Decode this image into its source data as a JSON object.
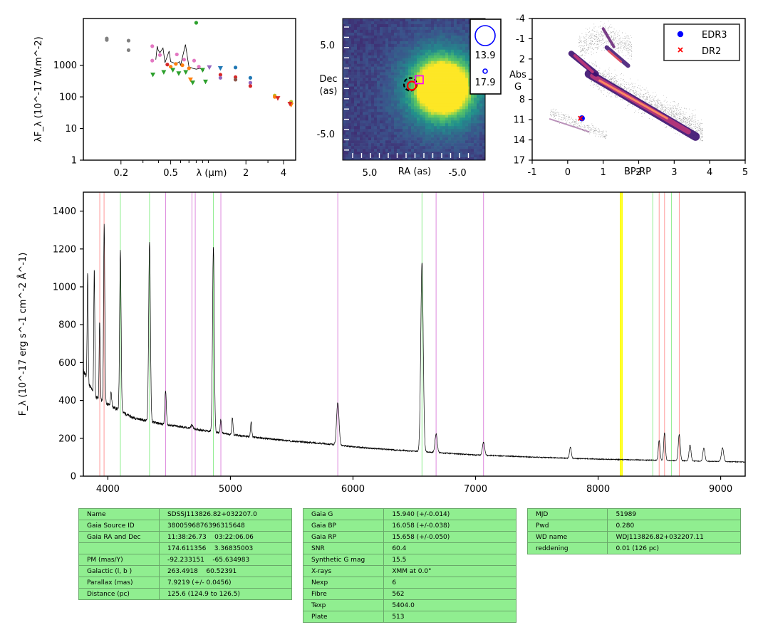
{
  "chart_data": [
    {
      "type": "scatter",
      "ylabel": "λF_λ (10^-17 W.m^-2)",
      "xlabel": "λ (μm)",
      "xscale": "log",
      "yscale": "log",
      "xlim": [
        0.1,
        5
      ],
      "ylim": [
        1,
        30000
      ],
      "xticklabels": [
        "0.2",
        "0.5",
        "2",
        "4"
      ],
      "yticklabels": [
        "1",
        "10",
        "100",
        "1000"
      ],
      "points": [
        {
          "x": 0.154,
          "y": 6300,
          "c": "#808080",
          "m": "o"
        },
        {
          "x": 0.154,
          "y": 7000,
          "c": "#808080",
          "m": "o"
        },
        {
          "x": 0.23,
          "y": 6000,
          "c": "#808080",
          "m": "o"
        },
        {
          "x": 0.23,
          "y": 3000,
          "c": "#808080",
          "m": "o"
        },
        {
          "x": 0.356,
          "y": 4000,
          "c": "#e377c2",
          "m": "o"
        },
        {
          "x": 0.356,
          "y": 1400,
          "c": "#e377c2",
          "m": "o"
        },
        {
          "x": 0.36,
          "y": 500,
          "c": "#2ca02c",
          "m": "v"
        },
        {
          "x": 0.41,
          "y": 2100,
          "c": "#e377c2",
          "m": "o"
        },
        {
          "x": 0.44,
          "y": 600,
          "c": "#2ca02c",
          "m": "v"
        },
        {
          "x": 0.47,
          "y": 1050,
          "c": "#d62728",
          "m": "o"
        },
        {
          "x": 0.5,
          "y": 900,
          "c": "#ff7f0e",
          "m": "o"
        },
        {
          "x": 0.52,
          "y": 700,
          "c": "#2ca02c",
          "m": "v"
        },
        {
          "x": 0.55,
          "y": 1100,
          "c": "#ff7f0e",
          "m": "o"
        },
        {
          "x": 0.56,
          "y": 2200,
          "c": "#e377c2",
          "m": "o"
        },
        {
          "x": 0.58,
          "y": 550,
          "c": "#2ca02c",
          "m": "v"
        },
        {
          "x": 0.62,
          "y": 1000,
          "c": "#ff7f0e",
          "m": "o"
        },
        {
          "x": 0.64,
          "y": 1500,
          "c": "#e377c2",
          "m": "o"
        },
        {
          "x": 0.66,
          "y": 600,
          "c": "#2ca02c",
          "m": "v"
        },
        {
          "x": 0.7,
          "y": 800,
          "c": "#ff7f0e",
          "m": "o"
        },
        {
          "x": 0.72,
          "y": 350,
          "c": "#ff7f0e",
          "m": "v"
        },
        {
          "x": 0.75,
          "y": 280,
          "c": "#2ca02c",
          "m": "v"
        },
        {
          "x": 0.77,
          "y": 1400,
          "c": "#e377c2",
          "m": "o"
        },
        {
          "x": 0.8,
          "y": 22000,
          "c": "#2ca02c",
          "m": "o"
        },
        {
          "x": 0.84,
          "y": 900,
          "c": "#e377c2",
          "m": "o"
        },
        {
          "x": 0.9,
          "y": 700,
          "c": "#2ca02c",
          "m": "v"
        },
        {
          "x": 0.95,
          "y": 300,
          "c": "#2ca02c",
          "m": "v"
        },
        {
          "x": 1.02,
          "y": 850,
          "c": "#9467bd",
          "m": "v"
        },
        {
          "x": 1.25,
          "y": 800,
          "c": "#1f77b4",
          "m": "v"
        },
        {
          "x": 1.25,
          "y": 500,
          "c": "#d62728",
          "m": "o"
        },
        {
          "x": 1.25,
          "y": 400,
          "c": "#9467bd",
          "m": "o"
        },
        {
          "x": 1.65,
          "y": 850,
          "c": "#1f77b4",
          "m": "o"
        },
        {
          "x": 1.65,
          "y": 420,
          "c": "#d62728",
          "m": "o"
        },
        {
          "x": 1.65,
          "y": 350,
          "c": "#8c564b",
          "m": "o"
        },
        {
          "x": 2.17,
          "y": 400,
          "c": "#1f77b4",
          "m": "o"
        },
        {
          "x": 2.17,
          "y": 280,
          "c": "#9467bd",
          "m": "o"
        },
        {
          "x": 2.17,
          "y": 220,
          "c": "#d62728",
          "m": "o"
        },
        {
          "x": 3.4,
          "y": 110,
          "c": "#bcbd22",
          "m": "o"
        },
        {
          "x": 3.4,
          "y": 100,
          "c": "#ff7f0e",
          "m": "o"
        },
        {
          "x": 3.6,
          "y": 90,
          "c": "#d62728",
          "m": "v"
        },
        {
          "x": 4.6,
          "y": 70,
          "c": "#bcbd22",
          "m": "o"
        },
        {
          "x": 4.6,
          "y": 55,
          "c": "#ff7f0e",
          "m": "v"
        },
        {
          "x": 4.5,
          "y": 60,
          "c": "#d62728",
          "m": "v"
        }
      ],
      "sdss_spectrum": {
        "x": [
          0.38,
          0.39,
          0.397,
          0.41,
          0.434,
          0.45,
          0.486,
          0.5,
          0.55,
          0.588,
          0.6,
          0.656,
          0.7,
          0.75,
          0.8,
          0.86,
          0.9,
          0.92
        ],
        "y": [
          1500,
          4000,
          3000,
          2500,
          3500,
          1200,
          2800,
          1300,
          1100,
          1300,
          1000,
          4500,
          900,
          800,
          750,
          800,
          700,
          650
        ]
      }
    },
    {
      "type": "heatmap",
      "xlabel": "RA (as)",
      "ylabel": "Dec\n(as)",
      "xlim": [
        10,
        -10
      ],
      "ylim": [
        -10,
        10
      ],
      "xticklabels": [
        "5.0",
        "-5.0"
      ],
      "yticklabels": [
        "5.0",
        "-5.0"
      ],
      "legend": [
        {
          "label": "13.9",
          "size": "large"
        },
        {
          "label": "17.9",
          "size": "small"
        }
      ],
      "source": {
        "ra": -1.5,
        "dec": 0.5,
        "radius": 3.8
      }
    },
    {
      "type": "scatter",
      "xlabel": "BP-RP",
      "ylabel": "Abs\nG",
      "xlim": [
        -1,
        5
      ],
      "ylim": [
        17,
        -4
      ],
      "xticklabels": [
        "-1",
        "0",
        "1",
        "2",
        "3",
        "4",
        "5"
      ],
      "yticklabels": [
        "-4",
        "-1",
        "2",
        "5",
        "8",
        "11",
        "14",
        "17"
      ],
      "legend_position": "top-right",
      "series": [
        {
          "name": "EDR3",
          "marker": "o",
          "color": "#0000ff",
          "x": 0.4,
          "y": 10.8
        },
        {
          "name": "DR2",
          "marker": "x",
          "color": "#ff0000",
          "x": 0.36,
          "y": 10.8
        }
      ]
    },
    {
      "type": "line",
      "ylabel": "F_λ (10^-17 erg s^-1 cm^-2 Å^-1)",
      "xlim": [
        3800,
        9200
      ],
      "ylim": [
        0,
        1500
      ],
      "xticklabels": [
        "4000",
        "5000",
        "6000",
        "7000",
        "8000",
        "9000"
      ],
      "yticklabels": [
        "0",
        "200",
        "400",
        "600",
        "800",
        "1000",
        "1200",
        "1400"
      ],
      "continuum": [
        [
          3800,
          560
        ],
        [
          3850,
          480
        ],
        [
          3900,
          420
        ],
        [
          4000,
          380
        ],
        [
          4200,
          310
        ],
        [
          4400,
          280
        ],
        [
          4600,
          260
        ],
        [
          4800,
          240
        ],
        [
          5000,
          220
        ],
        [
          5200,
          205
        ],
        [
          5500,
          185
        ],
        [
          5800,
          170
        ],
        [
          6000,
          155
        ],
        [
          6300,
          140
        ],
        [
          6600,
          128
        ],
        [
          7000,
          112
        ],
        [
          7500,
          100
        ],
        [
          8000,
          90
        ],
        [
          8400,
          85
        ],
        [
          8800,
          80
        ],
        [
          9200,
          75
        ]
      ],
      "emission_lines": [
        {
          "x": 3835,
          "peak": 1080,
          "w": 4
        },
        {
          "x": 3889,
          "peak": 1100,
          "w": 4
        },
        {
          "x": 3933,
          "peak": 820,
          "w": 4
        },
        {
          "x": 3970,
          "peak": 1330,
          "w": 5
        },
        {
          "x": 4026,
          "peak": 440,
          "w": 5
        },
        {
          "x": 4102,
          "peak": 1190,
          "w": 6
        },
        {
          "x": 4340,
          "peak": 1230,
          "w": 7
        },
        {
          "x": 4471,
          "peak": 450,
          "w": 6
        },
        {
          "x": 4686,
          "peak": 270,
          "w": 8
        },
        {
          "x": 4861,
          "peak": 1210,
          "w": 7
        },
        {
          "x": 4922,
          "peak": 300,
          "w": 5
        },
        {
          "x": 5016,
          "peak": 310,
          "w": 5
        },
        {
          "x": 5169,
          "peak": 290,
          "w": 5
        },
        {
          "x": 5876,
          "peak": 390,
          "w": 10
        },
        {
          "x": 6563,
          "peak": 1130,
          "w": 10
        },
        {
          "x": 6678,
          "peak": 225,
          "w": 9
        },
        {
          "x": 7065,
          "peak": 180,
          "w": 9
        },
        {
          "x": 7774,
          "peak": 155,
          "w": 7
        },
        {
          "x": 8498,
          "peak": 190,
          "w": 7
        },
        {
          "x": 8542,
          "peak": 230,
          "w": 7
        },
        {
          "x": 8662,
          "peak": 220,
          "w": 8
        },
        {
          "x": 8750,
          "peak": 165,
          "w": 8
        },
        {
          "x": 8863,
          "peak": 150,
          "w": 8
        },
        {
          "x": 9015,
          "peak": 150,
          "w": 9
        }
      ],
      "vlines": [
        {
          "x": 3934,
          "color": "#ff9999"
        },
        {
          "x": 3969,
          "color": "#ff9999"
        },
        {
          "x": 4102,
          "color": "#90ee90"
        },
        {
          "x": 4340,
          "color": "#90ee90"
        },
        {
          "x": 4471,
          "color": "#dd88dd"
        },
        {
          "x": 4686,
          "color": "#dd88dd"
        },
        {
          "x": 4713,
          "color": "#dd88dd"
        },
        {
          "x": 4861,
          "color": "#90ee90"
        },
        {
          "x": 4922,
          "color": "#dd88dd"
        },
        {
          "x": 5876,
          "color": "#dd88dd"
        },
        {
          "x": 6563,
          "color": "#90ee90"
        },
        {
          "x": 6678,
          "color": "#dd88dd"
        },
        {
          "x": 7065,
          "color": "#dd88dd"
        },
        {
          "x": 8183,
          "color": "#ffff00"
        },
        {
          "x": 8195,
          "color": "#ffff00"
        },
        {
          "x": 8446,
          "color": "#90ee90"
        },
        {
          "x": 8498,
          "color": "#ff9999"
        },
        {
          "x": 8542,
          "color": "#ff9999"
        },
        {
          "x": 8598,
          "color": "#90ee90"
        },
        {
          "x": 8662,
          "color": "#ff9999"
        }
      ]
    }
  ],
  "tables": [
    [
      [
        "Name",
        "SDSSJ113826.82+032207.0"
      ],
      [
        "Gaia Source ID",
        "3800596876396315648"
      ],
      [
        "Gaia RA and Dec",
        "11:38:26.73    03:22:06.06"
      ],
      [
        "",
        "174.611356    3.36835003"
      ],
      [
        "PM (mas/Y)",
        "-92.233151    -65.634983"
      ],
      [
        "Galactic (l, b )",
        "263.4918    60.52391"
      ],
      [
        "Parallax (mas)",
        "7.9219 (+/- 0.0456)"
      ],
      [
        "Distance (pc)",
        "125.6 (124.9 to 126.5)"
      ]
    ],
    [
      [
        "Gaia G",
        "15.940 (+/-0.014)"
      ],
      [
        "Gaia BP",
        "16.058 (+/-0.038)"
      ],
      [
        "Gaia RP",
        "15.658 (+/-0.050)"
      ],
      [
        "SNR",
        "60.4"
      ],
      [
        "Synthetic G mag",
        "15.5"
      ],
      [
        "X-rays",
        "XMM at 0.0\""
      ],
      [
        "Nexp",
        "6"
      ],
      [
        "Fibre",
        "562"
      ],
      [
        "Texp",
        "5404.0"
      ],
      [
        "Plate",
        "513"
      ]
    ],
    [
      [
        "MJD",
        "51989"
      ],
      [
        "Pwd",
        "0.280"
      ],
      [
        "WD name",
        "WDJ113826.82+032207.11"
      ],
      [
        "reddening",
        "0.01 (126 pc)"
      ]
    ]
  ]
}
